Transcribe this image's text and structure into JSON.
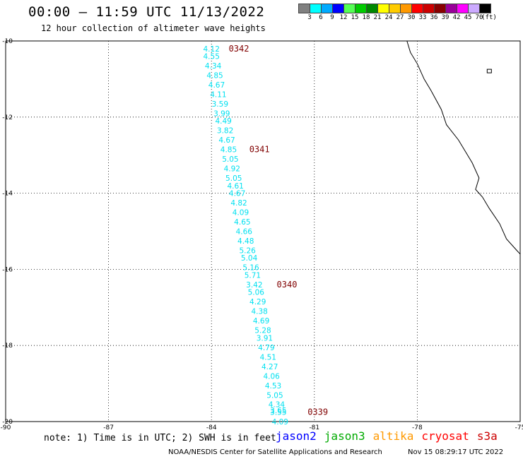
{
  "header": {
    "title": "00:00 – 11:59 UTC 11/13/2022",
    "subtitle": "12 hour collection of altimeter wave heights"
  },
  "scale": {
    "unit": "(ft)",
    "labels": [
      "3",
      "6",
      "9",
      "12",
      "15",
      "18",
      "21",
      "24",
      "27",
      "30",
      "33",
      "36",
      "39",
      "42",
      "45",
      "70"
    ],
    "colors": [
      "#808080",
      "#00ffff",
      "#00aaff",
      "#0000ff",
      "#55ff55",
      "#00cc00",
      "#008800",
      "#ffff00",
      "#ffcc00",
      "#ff9900",
      "#ff0000",
      "#cc0000",
      "#880000",
      "#990099",
      "#ff00ff",
      "#ccaaff",
      "#000000"
    ]
  },
  "axes": {
    "lat_labels": [
      "-10",
      "-12",
      "-14",
      "-16",
      "-18",
      "-20"
    ],
    "lon_labels": [
      "-90",
      "-87",
      "-84",
      "-81",
      "-78",
      "-75"
    ]
  },
  "chart_data": {
    "type": "map",
    "lon_range": [
      -90,
      -75
    ],
    "lat_range": [
      -20,
      -10
    ],
    "grid": true,
    "wave_color": "#00e0f0",
    "time_label_color": "#800000",
    "wave_heights_ft": [
      {
        "lon": -84.0,
        "lat": -10.2,
        "v": "4.12"
      },
      {
        "lon": -84.0,
        "lat": -10.4,
        "v": "4.55"
      },
      {
        "lon": -83.95,
        "lat": -10.65,
        "v": "4.34"
      },
      {
        "lon": -83.9,
        "lat": -10.9,
        "v": "4.85"
      },
      {
        "lon": -83.85,
        "lat": -11.15,
        "v": "4.67"
      },
      {
        "lon": -83.8,
        "lat": -11.4,
        "v": "4.11"
      },
      {
        "lon": -83.75,
        "lat": -11.65,
        "v": "3.59"
      },
      {
        "lon": -83.7,
        "lat": -11.9,
        "v": "3.99"
      },
      {
        "lon": -83.65,
        "lat": -12.1,
        "v": "4.49"
      },
      {
        "lon": -83.6,
        "lat": -12.35,
        "v": "3.82"
      },
      {
        "lon": -83.55,
        "lat": -12.6,
        "v": "4.67"
      },
      {
        "lon": -83.5,
        "lat": -12.85,
        "v": "4.85"
      },
      {
        "lon": -83.45,
        "lat": -13.1,
        "v": "5.05"
      },
      {
        "lon": -83.4,
        "lat": -13.35,
        "v": "4.92"
      },
      {
        "lon": -83.35,
        "lat": -13.6,
        "v": "5.05"
      },
      {
        "lon": -83.3,
        "lat": -13.8,
        "v": "4.61"
      },
      {
        "lon": -83.25,
        "lat": -14.0,
        "v": "4.67"
      },
      {
        "lon": -83.2,
        "lat": -14.25,
        "v": "4.82"
      },
      {
        "lon": -83.15,
        "lat": -14.5,
        "v": "4.09"
      },
      {
        "lon": -83.1,
        "lat": -14.75,
        "v": "4.65"
      },
      {
        "lon": -83.05,
        "lat": -15.0,
        "v": "4.66"
      },
      {
        "lon": -83.0,
        "lat": -15.25,
        "v": "4.48"
      },
      {
        "lon": -82.95,
        "lat": -15.5,
        "v": "5.26"
      },
      {
        "lon": -82.9,
        "lat": -15.7,
        "v": "5.04"
      },
      {
        "lon": -82.85,
        "lat": -15.95,
        "v": "5.16"
      },
      {
        "lon": -82.8,
        "lat": -16.15,
        "v": "5.71"
      },
      {
        "lon": -82.75,
        "lat": -16.4,
        "v": "3.42"
      },
      {
        "lon": -82.7,
        "lat": -16.6,
        "v": "5.06"
      },
      {
        "lon": -82.65,
        "lat": -16.85,
        "v": "4.29"
      },
      {
        "lon": -82.6,
        "lat": -17.1,
        "v": "4.38"
      },
      {
        "lon": -82.55,
        "lat": -17.35,
        "v": "4.69"
      },
      {
        "lon": -82.5,
        "lat": -17.6,
        "v": "5.28"
      },
      {
        "lon": -82.45,
        "lat": -17.8,
        "v": "3.91"
      },
      {
        "lon": -82.4,
        "lat": -18.05,
        "v": "4.79"
      },
      {
        "lon": -82.35,
        "lat": -18.3,
        "v": "4.51"
      },
      {
        "lon": -82.3,
        "lat": -18.55,
        "v": "4.27"
      },
      {
        "lon": -82.25,
        "lat": -18.8,
        "v": "4.06"
      },
      {
        "lon": -82.2,
        "lat": -19.05,
        "v": "4.53"
      },
      {
        "lon": -82.15,
        "lat": -19.3,
        "v": "5.05"
      },
      {
        "lon": -82.1,
        "lat": -19.55,
        "v": "4.34"
      },
      {
        "lon": -82.05,
        "lat": -19.75,
        "v": "3.55"
      },
      {
        "lon": -82.05,
        "lat": -19.7,
        "v": "3.65"
      },
      {
        "lon": -82.0,
        "lat": -20.0,
        "v": "4.09"
      }
    ],
    "pass_times": [
      {
        "lon": -83.2,
        "lat": -10.2,
        "v": "0342"
      },
      {
        "lon": -82.6,
        "lat": -12.85,
        "v": "0341"
      },
      {
        "lon": -81.8,
        "lat": -16.4,
        "v": "0340"
      },
      {
        "lon": -80.9,
        "lat": -19.75,
        "v": "0339"
      }
    ],
    "coastline": [
      [
        -78.3,
        -10.0
      ],
      [
        -78.2,
        -10.3
      ],
      [
        -78.0,
        -10.6
      ],
      [
        -77.8,
        -11.0
      ],
      [
        -77.6,
        -11.3
      ],
      [
        -77.3,
        -11.8
      ],
      [
        -77.15,
        -12.2
      ],
      [
        -76.8,
        -12.6
      ],
      [
        -76.4,
        -13.2
      ],
      [
        -76.2,
        -13.6
      ],
      [
        -76.3,
        -13.9
      ],
      [
        -76.1,
        -14.1
      ],
      [
        -75.9,
        -14.4
      ],
      [
        -75.6,
        -14.8
      ],
      [
        -75.4,
        -15.2
      ],
      [
        -75.1,
        -15.5
      ],
      [
        -75.0,
        -15.6
      ]
    ],
    "islands": [
      [
        -75.9,
        -10.8
      ]
    ]
  },
  "footer": {
    "note": "note: 1) Time is in UTC; 2) SWH is in feet",
    "satellites": [
      {
        "name": "jason2",
        "color": "#0000ff"
      },
      {
        "name": "jason3",
        "color": "#00aa00"
      },
      {
        "name": "altika",
        "color": "#ff9900"
      },
      {
        "name": "cryosat",
        "color": "#ff0000"
      },
      {
        "name": "s3a",
        "color": "#cc0000"
      }
    ],
    "credit": "NOAA/NESDIS Center for Satellite Applications and Research",
    "timestamp": "Nov 15 08:29:17 UTC 2022"
  }
}
